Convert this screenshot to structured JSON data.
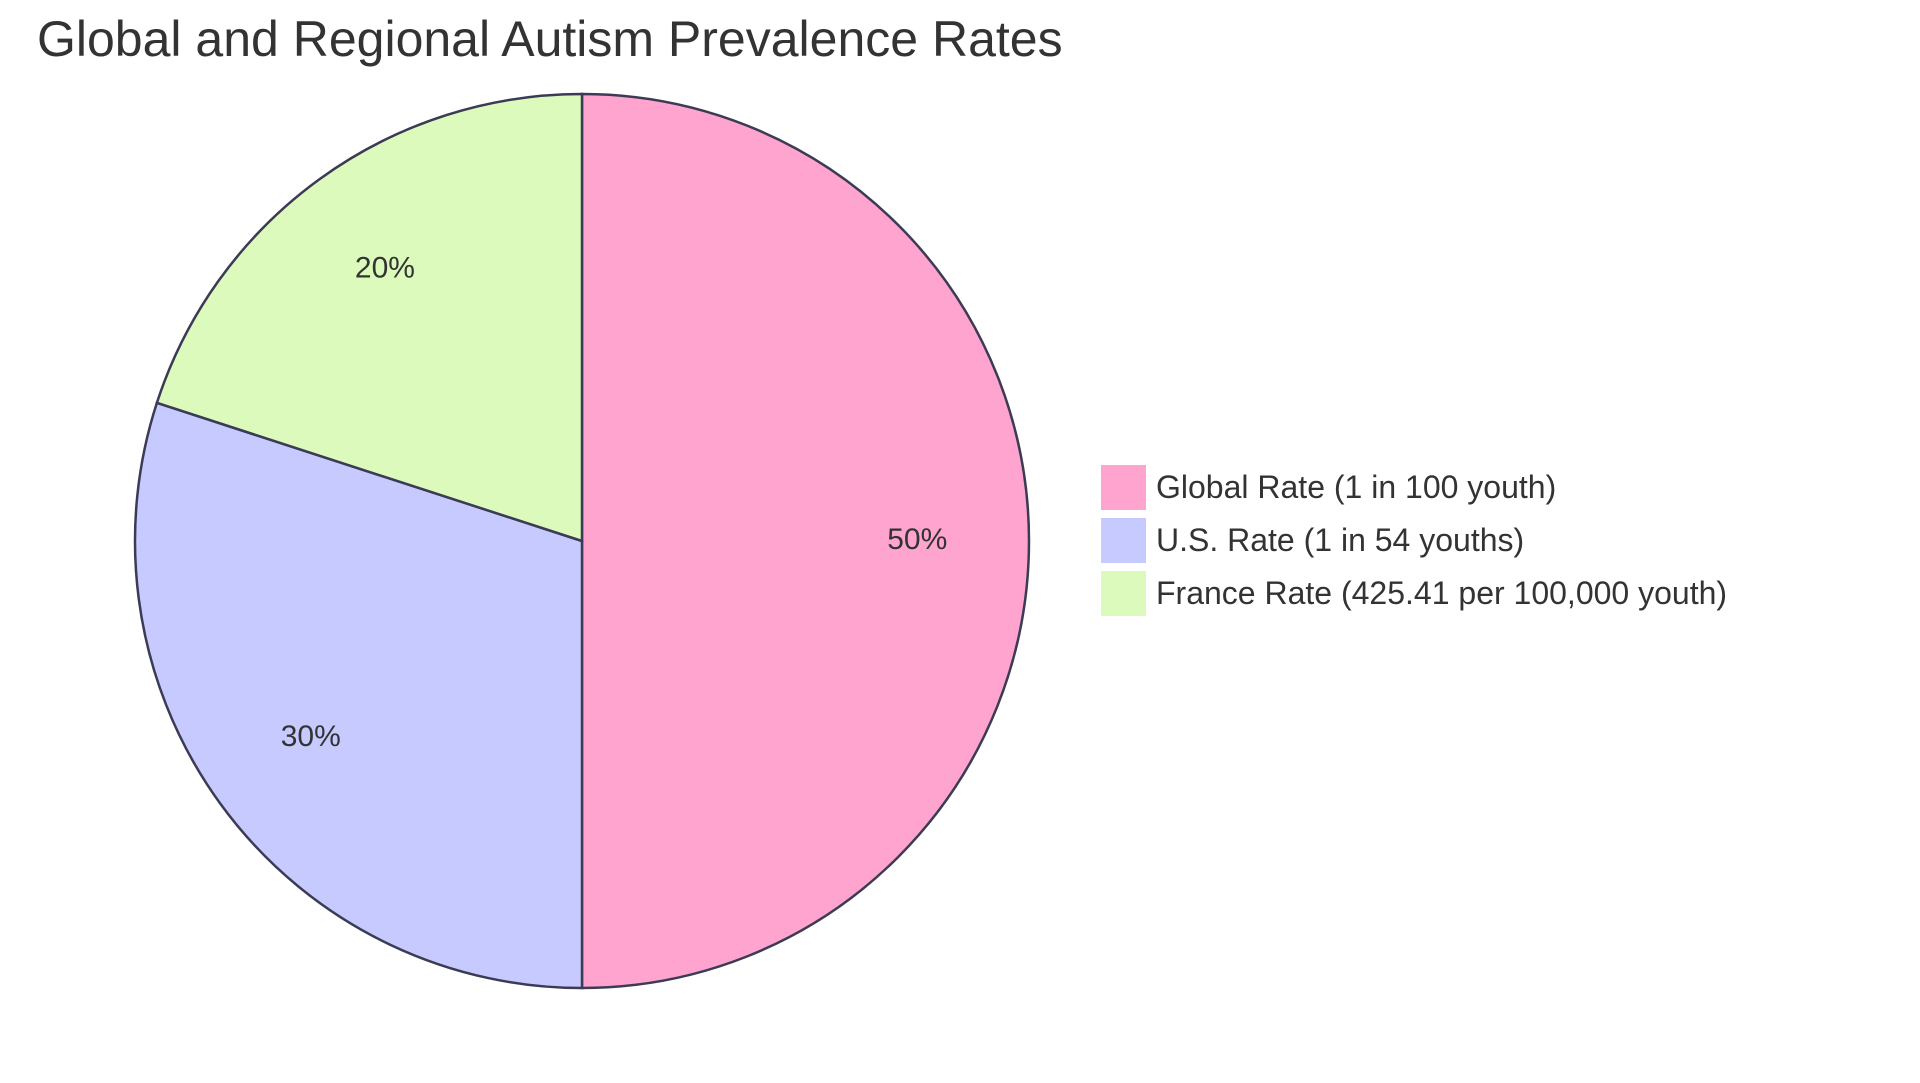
{
  "chart_data": {
    "type": "pie",
    "title": "Global and Regional Autism Prevalence Rates",
    "slices": [
      {
        "label": "Global Rate (1 in 100 youth)",
        "value": 50,
        "display": "50%",
        "color": "#FFA3CF"
      },
      {
        "label": "U.S. Rate (1 in 54 youths)",
        "value": 30,
        "display": "30%",
        "color": "#C7CAFF"
      },
      {
        "label": "France Rate (425.41 per 100,000 youth)",
        "value": 20,
        "display": "20%",
        "color": "#DBFABC"
      }
    ],
    "legend_position": "right",
    "stroke_color": "#3B3B55"
  }
}
